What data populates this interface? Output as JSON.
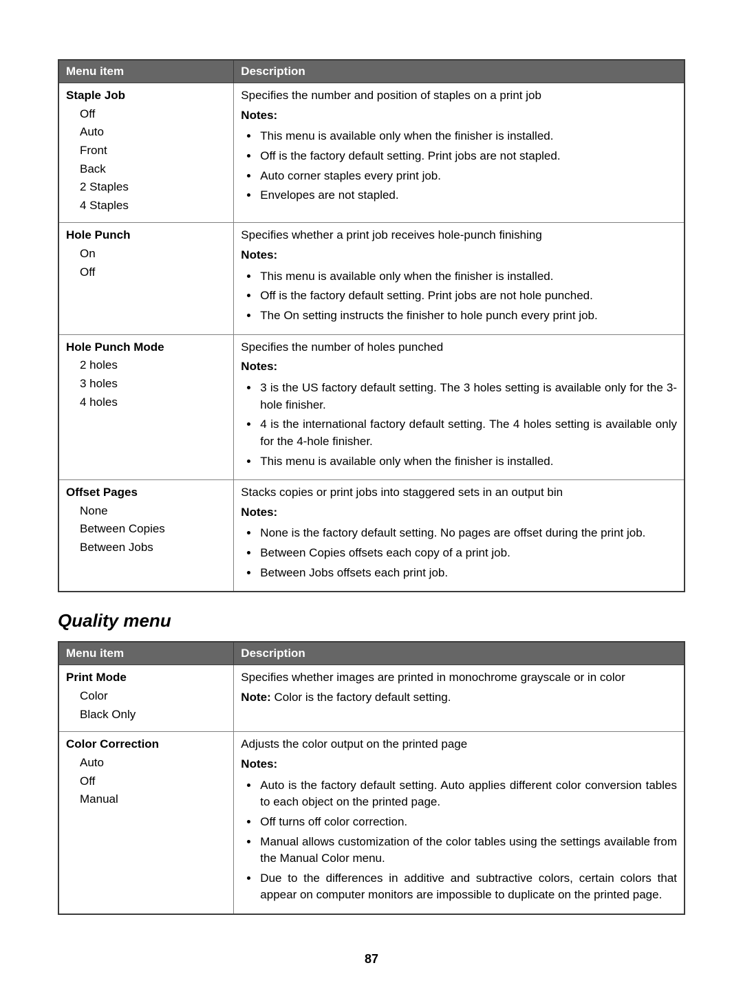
{
  "headers": {
    "menu": "Menu item",
    "desc": "Description"
  },
  "notes_label_plural": "Notes:",
  "notes_label_single": "Note:",
  "table1": {
    "rows": [
      {
        "title": "Staple Job",
        "options": [
          "Off",
          "Auto",
          "Front",
          "Back",
          "2 Staples",
          "4 Staples"
        ],
        "desc": "Specifies the number and position of staples on a print job",
        "notes": [
          "This menu is available only when the finisher is installed.",
          "Off is the factory default setting. Print jobs are not stapled.",
          "Auto corner staples every print job.",
          "Envelopes are not stapled."
        ]
      },
      {
        "title": "Hole Punch",
        "options": [
          "On",
          "Off"
        ],
        "desc": "Specifies whether a print job receives hole-punch finishing",
        "notes": [
          "This menu is available only when the finisher is installed.",
          "Off is the factory default setting. Print jobs are not hole punched.",
          "The On setting instructs the finisher to hole punch every print job."
        ]
      },
      {
        "title": "Hole Punch Mode",
        "options": [
          "2 holes",
          "3 holes",
          "4 holes"
        ],
        "desc": "Specifies the number of holes punched",
        "notes": [
          "3 is the US factory default setting. The 3 holes setting is available only for the 3-hole finisher.",
          "4 is the international factory default setting. The 4 holes setting is available only for the 4-hole finisher.",
          "This menu is available only when the finisher is installed."
        ]
      },
      {
        "title": "Offset Pages",
        "options": [
          "None",
          "Between Copies",
          "Between Jobs"
        ],
        "desc": "Stacks copies or print jobs into staggered sets in an output bin",
        "notes": [
          "None is the factory default setting. No pages are offset during the print job.",
          "Between Copies offsets each copy of a print job.",
          "Between Jobs offsets each print job."
        ]
      }
    ]
  },
  "section_heading": "Quality menu",
  "table2": {
    "rows": [
      {
        "title": "Print Mode",
        "options": [
          "Color",
          "Black Only"
        ],
        "desc": "Specifies whether images are printed in monochrome grayscale or in color",
        "single_note": "Color is the factory default setting."
      },
      {
        "title": "Color Correction",
        "options": [
          "Auto",
          "Off",
          "Manual"
        ],
        "desc": "Adjusts the color output on the printed page",
        "notes": [
          "Auto is the factory default setting. Auto applies different color conversion tables to each object on the printed page.",
          "Off turns off color correction.",
          "Manual allows customization of the color tables using the settings available from the Manual Color menu.",
          "Due to the differences in additive and subtractive colors, certain colors that appear on computer monitors are impossible to duplicate on the printed page."
        ]
      }
    ]
  },
  "page_number": "87"
}
